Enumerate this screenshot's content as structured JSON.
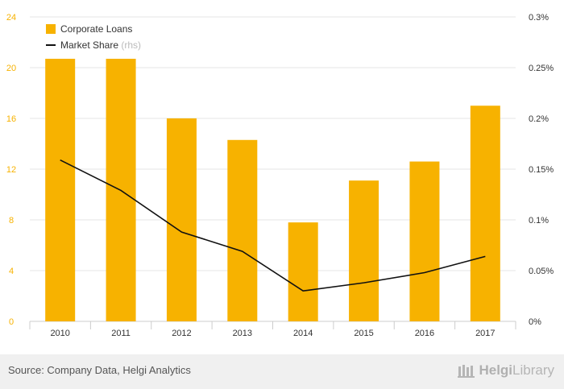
{
  "chart_data": {
    "type": "bar",
    "categories": [
      "2010",
      "2011",
      "2012",
      "2013",
      "2014",
      "2015",
      "2016",
      "2017"
    ],
    "series": [
      {
        "name": "Corporate Loans",
        "type": "bar",
        "axis": "left",
        "values": [
          20.7,
          20.7,
          16.0,
          14.3,
          7.8,
          11.1,
          12.6,
          17.0
        ]
      },
      {
        "name": "Market Share",
        "suffix": "(rhs)",
        "type": "line",
        "axis": "right",
        "values": [
          0.159,
          0.129,
          0.088,
          0.069,
          0.03,
          0.038,
          0.048,
          0.064
        ]
      }
    ],
    "y_left": {
      "ticks": [
        "0",
        "4",
        "8",
        "12",
        "16",
        "20",
        "24"
      ],
      "min": 0,
      "max": 24
    },
    "y_right": {
      "ticks": [
        "0%",
        "0.05%",
        "0.1%",
        "0.15%",
        "0.2%",
        "0.25%",
        "0.3%"
      ],
      "min": 0,
      "max": 0.3
    },
    "grid": true,
    "legend_position": "top-left",
    "colors": {
      "bar": "#f7b200",
      "line": "#111111",
      "left_axis_text": "#f7b200",
      "right_axis_text": "#333333"
    }
  },
  "footer": {
    "source": "Source: Company Data, Helgi Analytics",
    "brand_bold": "Helgi",
    "brand_light": "Library"
  }
}
